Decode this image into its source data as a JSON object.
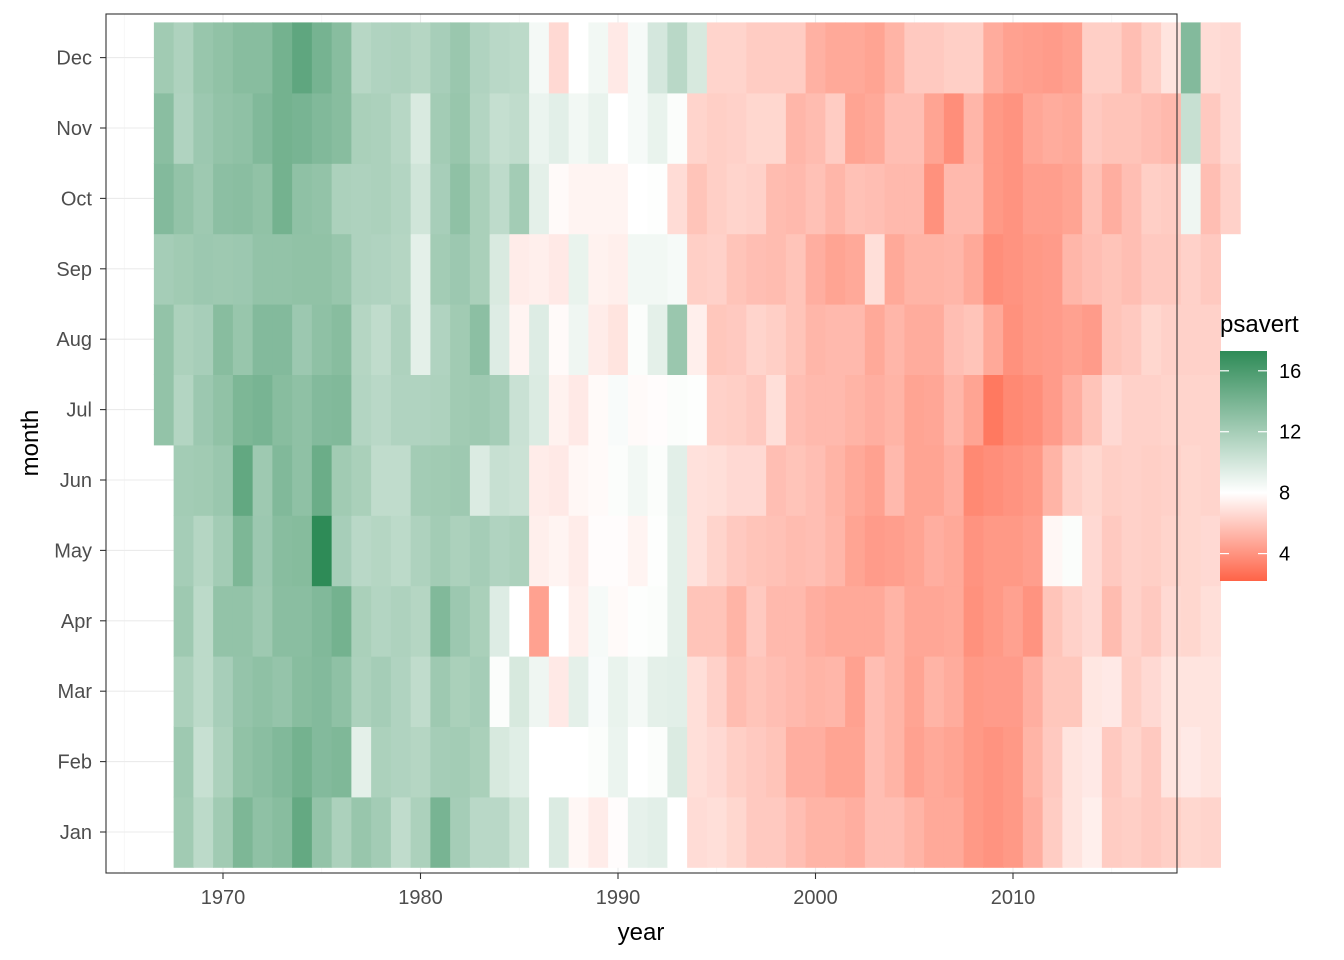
{
  "chart_data": {
    "type": "heatmap",
    "title": "",
    "xlabel": "year",
    "ylabel": "month",
    "months": [
      "Jan",
      "Feb",
      "Mar",
      "Apr",
      "May",
      "Jun",
      "Jul",
      "Aug",
      "Sep",
      "Oct",
      "Nov",
      "Dec"
    ],
    "x_ticks": [
      1970,
      1980,
      1990,
      2000,
      2010
    ],
    "xlim": [
      1964.4,
      2017.8
    ],
    "grid": true,
    "legend": {
      "title": "psavert",
      "position": "right",
      "ticks": [
        4,
        8,
        12,
        16
      ],
      "range": [
        2.2,
        17.3
      ],
      "color_low": "#ff6347",
      "color_mid": "#ffffff",
      "color_high": "#2e8b57",
      "midpoint": 8
    },
    "series_by_month": [
      {
        "month": "Jan",
        "start_year": 1968,
        "values": [
          12.2,
          11.0,
          12.2,
          13.8,
          13.0,
          13.3,
          14.9,
          12.8,
          11.7,
          12.6,
          12.1,
          10.8,
          11.7,
          14.0,
          12.0,
          11.1,
          11.1,
          10.2,
          8.0,
          9.6,
          7.7,
          7.3,
          7.9,
          9.1,
          9.3,
          8.0,
          6.7,
          6.8,
          6.5,
          6.0,
          6.0,
          5.6,
          5.2,
          5.2,
          5.0,
          5.6,
          5.6,
          5.2,
          4.8,
          4.8,
          4.2,
          4.0,
          4.2,
          5.0,
          6.1,
          7.0,
          7.4,
          6.1,
          6.2,
          6.0,
          6.2,
          6.5,
          6.4
        ]
      },
      {
        "month": "Feb",
        "start_year": 1968,
        "values": [
          12.3,
          10.5,
          11.7,
          12.9,
          13.2,
          13.6,
          14.2,
          13.5,
          13.7,
          9.2,
          11.7,
          11.5,
          11.3,
          12.0,
          12.1,
          11.8,
          9.8,
          9.4,
          8.0,
          8.0,
          8.0,
          8.2,
          8.9,
          8.0,
          8.2,
          9.6,
          6.8,
          6.6,
          6.2,
          6.0,
          5.8,
          5.0,
          5.0,
          4.6,
          4.6,
          5.6,
          5.2,
          4.5,
          4.8,
          4.6,
          4.2,
          4.0,
          4.2,
          5.2,
          6.0,
          7.0,
          7.2,
          6.0,
          6.4,
          6.0,
          7.0,
          7.2,
          7.0
        ]
      },
      {
        "month": "Mar",
        "start_year": 1968,
        "values": [
          11.7,
          11.0,
          11.9,
          12.7,
          13.0,
          12.7,
          13.3,
          13.5,
          13.0,
          11.7,
          12.0,
          11.5,
          10.8,
          12.3,
          11.8,
          12.0,
          8.2,
          9.8,
          8.7,
          7.2,
          9.2,
          8.3,
          9.0,
          8.5,
          9.2,
          9.3,
          6.8,
          6.3,
          5.5,
          5.8,
          5.6,
          5.4,
          5.2,
          5.3,
          4.5,
          5.6,
          5.2,
          4.6,
          5.2,
          4.9,
          4.2,
          4.3,
          4.3,
          5.0,
          5.9,
          5.9,
          7.1,
          7.2,
          6.2,
          6.6,
          7.0,
          7.0,
          7.0
        ]
      },
      {
        "month": "Apr",
        "start_year": 1968,
        "values": [
          12.3,
          11.0,
          12.8,
          12.8,
          12.3,
          13.2,
          13.2,
          13.6,
          14.2,
          11.8,
          11.4,
          11.6,
          11.3,
          13.6,
          12.4,
          11.8,
          9.5,
          8.0,
          4.5,
          8.0,
          7.4,
          8.4,
          7.8,
          8.1,
          8.2,
          9.2,
          5.8,
          5.8,
          5.2,
          6.0,
          5.4,
          5.4,
          5.0,
          4.8,
          4.8,
          4.8,
          5.2,
          4.7,
          4.7,
          4.8,
          3.9,
          4.2,
          4.5,
          4.0,
          5.8,
          6.3,
          6.6,
          5.5,
          6.3,
          6.0,
          6.6,
          6.5,
          6.8
        ]
      },
      {
        "month": "May",
        "start_year": 1968,
        "values": [
          12.0,
          11.3,
          12.1,
          13.8,
          12.4,
          13.3,
          13.4,
          17.3,
          11.9,
          11.1,
          11.3,
          11.0,
          11.6,
          12.1,
          11.7,
          12.0,
          11.5,
          11.7,
          7.4,
          7.6,
          7.3,
          7.9,
          7.9,
          7.6,
          8.1,
          9.2,
          6.9,
          6.4,
          6.0,
          5.8,
          5.7,
          5.5,
          5.6,
          5.3,
          4.6,
          4.3,
          4.4,
          4.6,
          5.0,
          4.8,
          4.0,
          4.2,
          4.2,
          4.4,
          7.7,
          8.2,
          6.6,
          6.0,
          6.3,
          6.2,
          6.4,
          6.5,
          6.6
        ]
      },
      {
        "month": "Jun",
        "start_year": 1968,
        "values": [
          12.1,
          12.2,
          12.5,
          15.0,
          12.3,
          13.6,
          13.0,
          14.6,
          12.2,
          11.8,
          10.8,
          10.8,
          12.1,
          12.2,
          12.3,
          9.6,
          10.5,
          10.3,
          7.3,
          7.2,
          7.7,
          7.8,
          8.2,
          8.6,
          8.2,
          9.3,
          6.9,
          6.8,
          6.6,
          6.6,
          5.6,
          5.8,
          5.6,
          5.2,
          4.8,
          4.5,
          5.4,
          4.6,
          4.6,
          5.0,
          3.6,
          3.8,
          4.0,
          4.2,
          5.2,
          6.2,
          6.5,
          6.2,
          6.3,
          6.2,
          6.3,
          6.5,
          6.4
        ]
      }
    ],
    "series_by_month_b": [
      {
        "month": "Jul",
        "start_year": 1967,
        "values": [
          12.8,
          11.4,
          12.4,
          12.9,
          13.8,
          14.0,
          13.3,
          13.0,
          13.5,
          13.6,
          11.4,
          11.1,
          11.5,
          11.5,
          11.6,
          12.2,
          12.3,
          12.0,
          10.4,
          9.6,
          7.5,
          7.2,
          7.8,
          8.3,
          7.8,
          7.9,
          8.2,
          8.1,
          6.3,
          6.2,
          6.0,
          6.8,
          5.6,
          5.4,
          5.4,
          5.2,
          5.0,
          5.2,
          4.6,
          4.7,
          5.3,
          4.6,
          3.0,
          3.6,
          3.8,
          4.3,
          5.0,
          5.8,
          6.6,
          6.3,
          6.3,
          6.4,
          6.4,
          6.4
        ]
      },
      {
        "month": "Aug",
        "start_year": 1967,
        "values": [
          12.8,
          11.7,
          11.9,
          13.3,
          12.6,
          13.5,
          13.5,
          12.4,
          13.0,
          13.3,
          11.3,
          10.8,
          11.6,
          9.2,
          11.5,
          12.2,
          13.1,
          9.5,
          7.6,
          9.5,
          7.8,
          8.7,
          7.3,
          7.0,
          8.2,
          9.2,
          12.5,
          7.4,
          5.9,
          6.0,
          6.4,
          6.2,
          5.8,
          5.3,
          5.4,
          5.4,
          4.8,
          5.3,
          4.9,
          4.9,
          5.6,
          5.8,
          4.8,
          3.9,
          4.2,
          4.3,
          4.5,
          4.3,
          5.8,
          6.0,
          6.5,
          6.3,
          6.3,
          6.3
        ]
      },
      {
        "month": "Sep",
        "start_year": 1967,
        "values": [
          12.0,
          12.2,
          12.4,
          12.3,
          12.4,
          12.8,
          12.8,
          12.9,
          12.9,
          12.6,
          11.6,
          11.5,
          11.3,
          9.2,
          12.1,
          12.4,
          11.8,
          9.7,
          7.3,
          7.4,
          7.2,
          9.0,
          7.5,
          7.4,
          8.6,
          8.6,
          8.4,
          6.2,
          6.3,
          5.8,
          5.6,
          5.5,
          5.8,
          5.0,
          4.6,
          4.8,
          6.8,
          4.8,
          5.2,
          5.2,
          5.3,
          4.8,
          3.8,
          4.0,
          4.2,
          4.3,
          5.3,
          5.6,
          5.8,
          5.6,
          6.0,
          6.0,
          6.3,
          6.0
        ]
      },
      {
        "month": "Oct",
        "start_year": 1967,
        "values": [
          13.5,
          12.8,
          12.3,
          13.1,
          13.2,
          12.9,
          14.2,
          13.0,
          12.8,
          11.7,
          11.6,
          11.7,
          11.4,
          10.1,
          11.9,
          13.0,
          11.8,
          10.9,
          12.1,
          9.2,
          7.8,
          7.6,
          7.6,
          7.6,
          8.0,
          8.1,
          6.7,
          5.8,
          6.2,
          6.4,
          6.3,
          5.5,
          5.4,
          5.7,
          5.3,
          5.7,
          5.6,
          5.4,
          5.4,
          3.9,
          5.4,
          5.4,
          4.2,
          4.0,
          4.4,
          4.4,
          4.6,
          5.7,
          5.0,
          5.6,
          6.2,
          6.1,
          8.7,
          5.6,
          6.3
        ]
      },
      {
        "month": "Nov",
        "start_year": 1967,
        "values": [
          13.2,
          11.5,
          12.4,
          12.8,
          13.0,
          13.6,
          14.2,
          14.0,
          13.6,
          13.3,
          11.8,
          11.7,
          11.2,
          9.7,
          12.1,
          12.6,
          11.4,
          10.6,
          10.8,
          8.9,
          9.3,
          8.6,
          9.0,
          8.0,
          8.4,
          9.0,
          8.2,
          6.4,
          6.2,
          6.3,
          6.5,
          6.5,
          5.3,
          5.5,
          6.1,
          4.6,
          4.8,
          5.6,
          5.6,
          4.6,
          3.8,
          5.3,
          4.2,
          4.0,
          4.7,
          4.9,
          4.8,
          6.0,
          5.8,
          5.8,
          5.6,
          5.4,
          10.5,
          6.0,
          6.6
        ]
      },
      {
        "month": "Dec",
        "start_year": 1967,
        "values": [
          12.2,
          11.6,
          12.6,
          12.9,
          13.3,
          13.3,
          14.2,
          15.1,
          14.1,
          13.3,
          11.2,
          11.5,
          11.6,
          11.3,
          11.9,
          12.5,
          11.5,
          11.1,
          11.0,
          8.5,
          6.6,
          8.0,
          8.6,
          7.2,
          8.4,
          9.9,
          11.1,
          9.8,
          6.4,
          6.4,
          6.1,
          6.1,
          6.1,
          5.1,
          4.8,
          4.8,
          4.6,
          5.2,
          6.0,
          6.0,
          6.2,
          6.2,
          4.9,
          4.5,
          4.4,
          4.3,
          4.5,
          6.2,
          6.2,
          5.6,
          6.2,
          7.0,
          13.5,
          6.7,
          6.6
        ]
      }
    ]
  }
}
